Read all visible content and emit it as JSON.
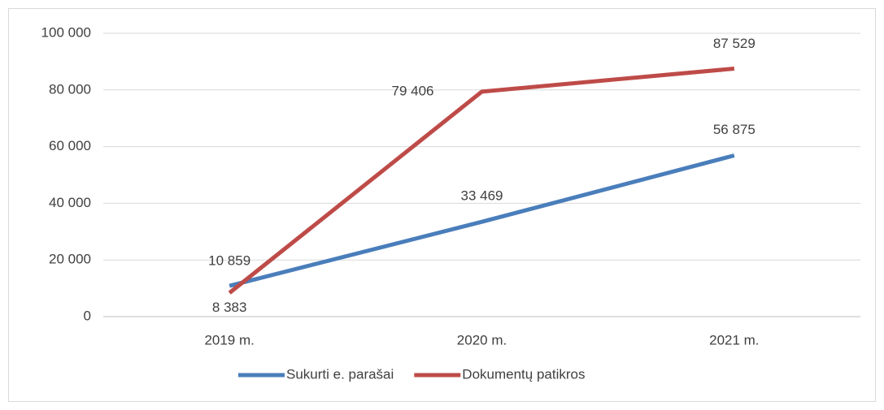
{
  "chart_data": {
    "type": "line",
    "categories": [
      "2019 m.",
      "2020 m.",
      "2021 m."
    ],
    "series": [
      {
        "name": "Sukurti e. parašai",
        "color": "#4a7ebb",
        "values": [
          10859,
          33469,
          56875
        ],
        "value_labels": [
          "10 859",
          "33 469",
          "56 875"
        ]
      },
      {
        "name": "Dokumentų patikros",
        "color": "#be4b48",
        "values": [
          8383,
          79406,
          87529
        ],
        "value_labels": [
          "8 383",
          "79 406",
          "87 529"
        ]
      }
    ],
    "ylim": [
      0,
      100000
    ],
    "yticks": [
      0,
      {
        "value": 20000,
        "label": "20 000"
      },
      {
        "value": 40000,
        "label": "40 000"
      },
      {
        "value": 60000,
        "label": "60 000"
      },
      {
        "value": 80000,
        "label": "80 000"
      },
      {
        "value": 100000,
        "label": "100 000"
      }
    ],
    "grid": true,
    "legend": "bottom"
  }
}
